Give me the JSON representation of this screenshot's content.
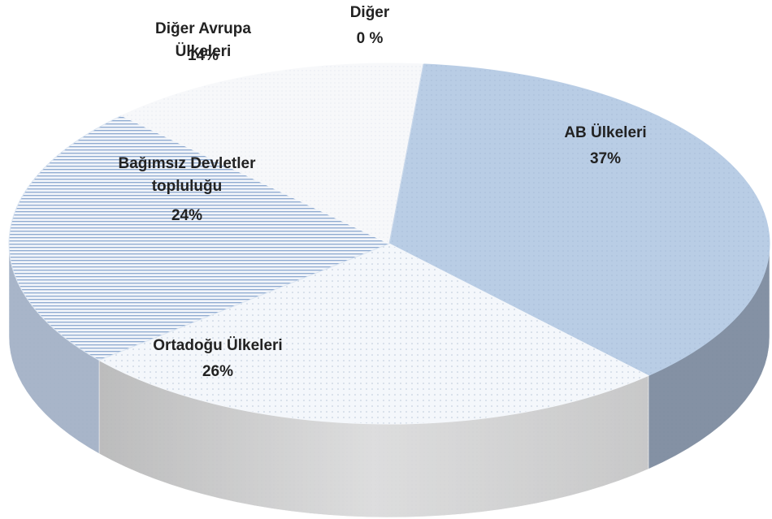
{
  "chart_data": {
    "type": "pie3d",
    "categories": [
      "AB Ülkeleri",
      "Ortadoğu Ülkeleri",
      "Bağımsız Devletler topluluğu",
      "Diğer Avrupa Ülkeleri",
      "Diğer"
    ],
    "values": [
      37,
      26,
      24,
      14,
      0
    ],
    "value_labels": [
      "37%",
      "26%",
      "24%",
      "14%",
      "0 %"
    ],
    "colors": [
      "#b9cde5",
      "#f4f7fb",
      "#dce6f2",
      "#f7f8fa",
      "#c6d6ea"
    ]
  }
}
